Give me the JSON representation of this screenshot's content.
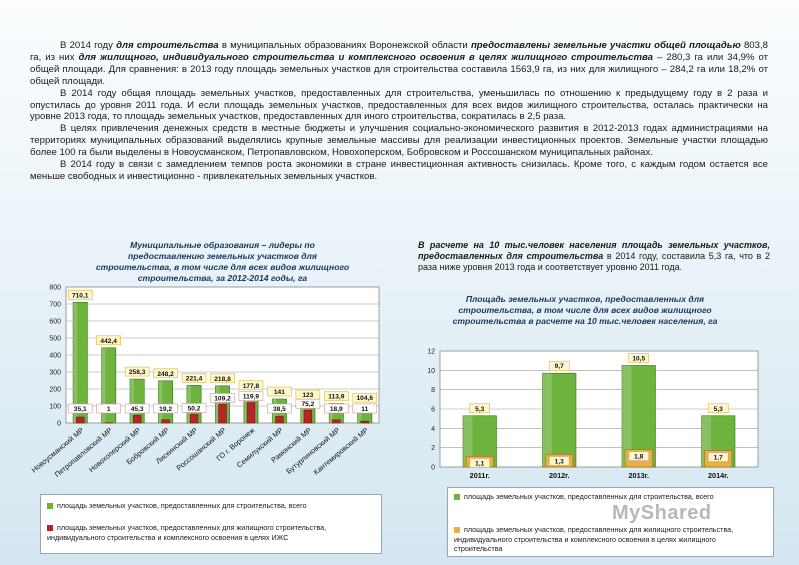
{
  "text": {
    "p1": [
      {
        "t": "В 2014 году ",
        "b": false
      },
      {
        "t": "для строительства",
        "b": true
      },
      {
        "t": " в муниципальных образованиях Воронежской области ",
        "b": false
      },
      {
        "t": "предоставлены земельные участки общей площадью",
        "b": true
      },
      {
        "t": " 803,8 га, из них ",
        "b": false
      },
      {
        "t": "для жилищного, индивидуального строительства и комплексного освоения в целях жилищного строительства",
        "b": true
      },
      {
        "t": " – 280,3 га или 34,9% от общей площади. Для сравнения: в 2013 году площадь земельных участков для строительства составила 1563,9 га, из них для жилищного – 284,2 га или 18,2% от общей площади.",
        "b": false
      }
    ],
    "p2": "В 2014 году общая площадь земельных участков, предоставленных для строительства, уменьшилась по отношению к предыдущему году в 2 раза и опустилась до уровня 2011 года. И если площадь земельных участков, предоставленных для всех видов жилищного строительства, осталась практически на уровне 2013 года, то площадь земельных участков, предоставленных для иного строительства, сократилась в 2,5 раза.",
    "p3": "В целях привлечения денежных средств в местные бюджеты и улучшения социально-экономического развития в 2012-2013 годах администрациями на территориях муниципальных образований выделялись крупные земельные массивы для реализации инвестиционных проектов. Земельные участки площадью более 100 га были выделены в Новоусманском, Петропавловском, Новохоперском, Бобровском и Россошанском муниципальных районах.",
    "p4": "В 2014 году в связи с замедлением темпов роста экономики в стране инвестиционная активность снизилась. Кроме того, с каждым годом остается все меньше свободных и инвестиционно - привлекательных земельных участков."
  },
  "right_note": [
    {
      "t": "В расчете на 10 тыс.человек населения площадь земельных участков, предоставленных для строительства",
      "b": true
    },
    {
      "t": " в 2014 году, составила 5,3 га, что в 2 раза ниже уровня 2013 года и соответствует уровню 2011 года.",
      "b": false
    }
  ],
  "colors": {
    "green": "#6fb33f",
    "green_dark": "#3f7f1f",
    "red": "#b52626",
    "label_bg": "#fff7cc",
    "label_border": "#d8b940"
  },
  "chart_data": [
    {
      "type": "bar",
      "title": "Муниципальные образования – лидеры по предоставлению земельных участков для строительства, в том числе для всех видов жилищного строительства, за 2012-2014 годы, га",
      "categories": [
        "Новоусманский МР",
        "Петропавловский МР",
        "Новохоперский МР",
        "Бобровский МР",
        "Лискинский МР",
        "Россошанский МР",
        "ГО г. Воронеж",
        "Семилукский МР",
        "Рамонский МР",
        "Бутурлиновский МР",
        "Кантемировский МР"
      ],
      "series": [
        {
          "name": "площадь земельных участков, предоставленных для строительства, всего",
          "values": [
            710.1,
            442.4,
            258.3,
            248.2,
            221.4,
            218.8,
            177.8,
            141,
            123,
            113.9,
            104.6
          ],
          "labels": [
            "710,1",
            "442,4",
            "258,3",
            "248,2",
            "221,4",
            "218,8",
            "177,8",
            "141",
            "123",
            "113,9",
            "104,6"
          ]
        },
        {
          "name": "площадь земельных участков, предоставленных для жилищного строительства, индивидуального строительства и комплексного освоения в целях ИЖС",
          "values": [
            35.1,
            1,
            45.3,
            19.2,
            50.2,
            109.2,
            119.9,
            38.5,
            75.2,
            18.9,
            11
          ],
          "labels": [
            "35,1",
            "1",
            "45,3",
            "19,2",
            "50,2",
            "109,2",
            "119,9",
            "38,5",
            "75,2",
            "18,9",
            "11"
          ]
        }
      ],
      "ylim": [
        0,
        800
      ],
      "yticks": [
        0,
        100,
        200,
        300,
        400,
        500,
        600,
        700,
        800
      ],
      "grid": true,
      "legend": "bottom"
    },
    {
      "type": "bar",
      "title": "Площадь земельных участков, предоставленных для строительства, в том числе для всех видов жилищного строительства в расчете на 10 тыс.человек населения, га",
      "categories": [
        "2011г.",
        "2012г.",
        "2013г.",
        "2014г."
      ],
      "series": [
        {
          "name": "площадь земельных участков, предоставленных для строительства, всего",
          "values": [
            5.3,
            9.7,
            10.5,
            5.3
          ],
          "labels": [
            "5,3",
            "9,7",
            "10,5",
            "5,3"
          ]
        },
        {
          "name": "площадь земельных участков, предоставленных для жилищного строительства, индивидуального строительства и комплексного освоения в целях жилищного строительства",
          "values": [
            1.1,
            1.3,
            1.8,
            1.7
          ],
          "labels": [
            "1,1",
            "1,3",
            "1,8",
            "1,7"
          ]
        }
      ],
      "ylim": [
        0,
        12
      ],
      "yticks": [
        0,
        2,
        4,
        6,
        8,
        10,
        12
      ],
      "grid": true,
      "legend": "bottom"
    }
  ],
  "watermark": "MyShared"
}
